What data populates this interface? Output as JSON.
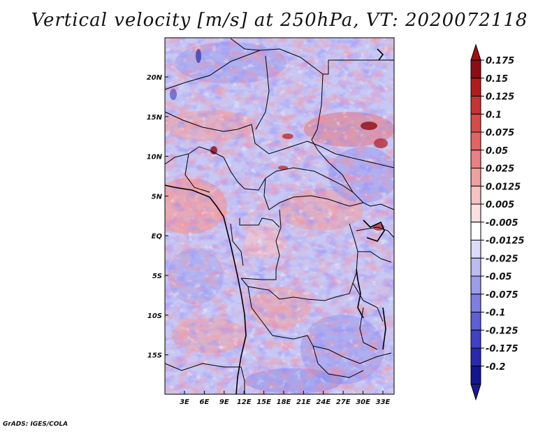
{
  "title": "Vertical velocity [m/s] at 250hPa, VT: 2020072118",
  "footer": "GrADS: IGES/COLA",
  "lat_labels": [
    "20N",
    "15N",
    "10N",
    "5N",
    "EQ",
    "5S",
    "10S",
    "15S"
  ],
  "lon_labels": [
    "3E",
    "6E",
    "9E",
    "12E",
    "15E",
    "18E",
    "21E",
    "24E",
    "27E",
    "30E",
    "33E"
  ],
  "colorbar": {
    "labels": [
      "0.175",
      "0.15",
      "0.125",
      "0.1",
      "0.075",
      "0.05",
      "0.025",
      "0.0125",
      "0.005",
      "-0.005",
      "-0.0125",
      "-0.025",
      "-0.05",
      "-0.075",
      "-0.1",
      "-0.125",
      "-0.175",
      "-0.2"
    ],
    "colors": [
      "#8e0d12",
      "#b41c1c",
      "#c83232",
      "#d84a4a",
      "#e26464",
      "#ea8080",
      "#f0a0a0",
      "#f6c2c2",
      "#fbe0e0",
      "#ffffff",
      "#dcdcf8",
      "#bcbcf2",
      "#9c9cec",
      "#7e7ee4",
      "#5e5ed8",
      "#4040c8",
      "#2828b0",
      "#151592"
    ],
    "top_color": "#a01010",
    "bottom_color": "#1a1a90"
  },
  "map": {
    "background_color": "#c8c8f4"
  }
}
